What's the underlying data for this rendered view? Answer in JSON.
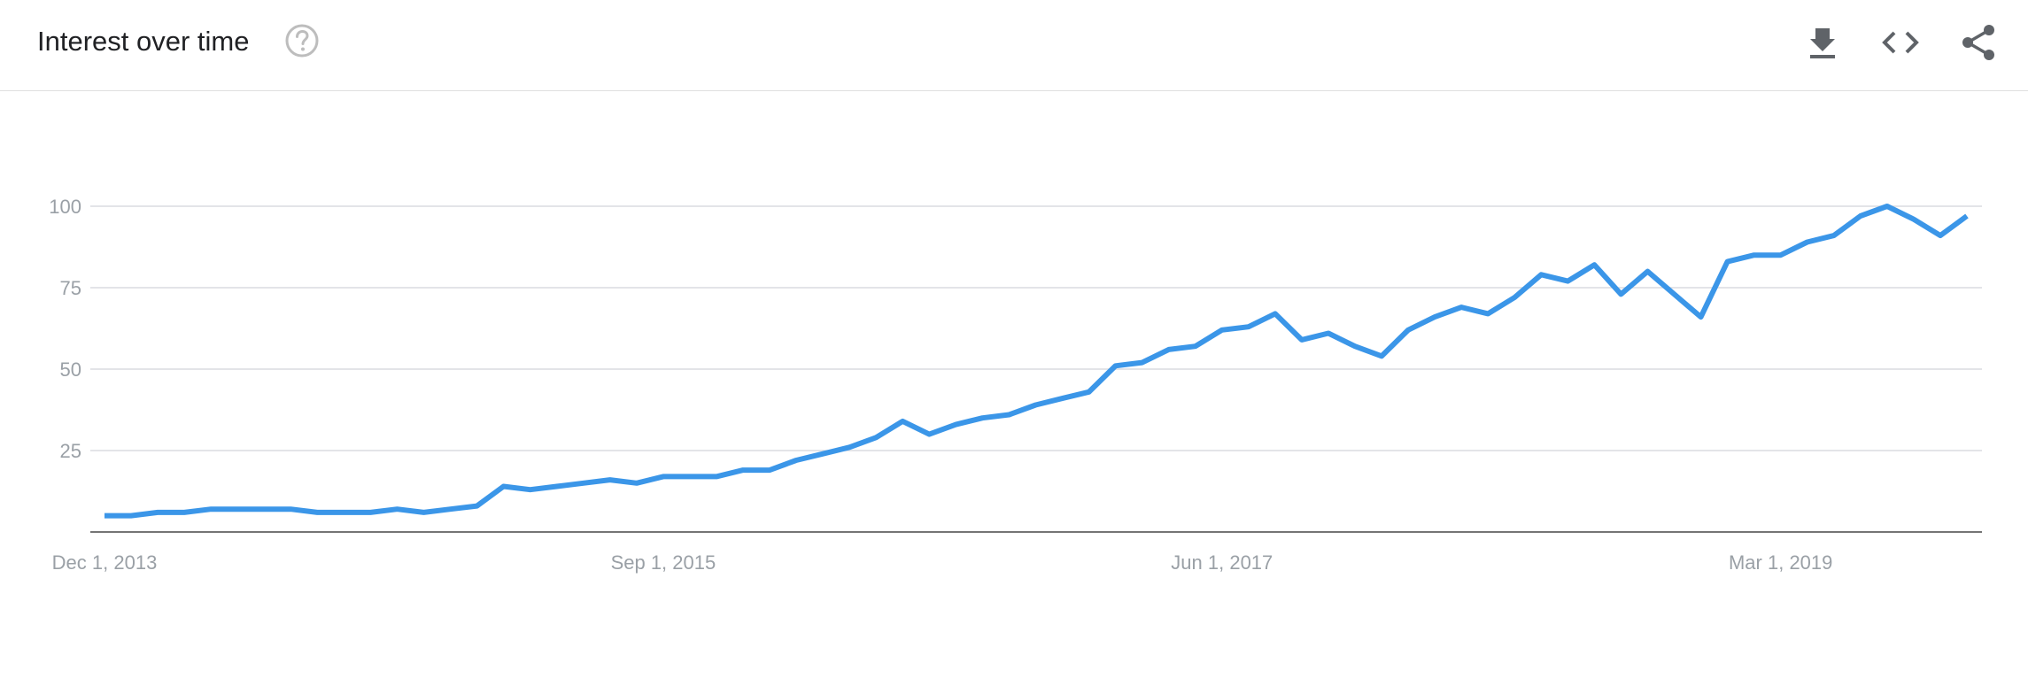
{
  "header": {
    "title": "Interest over time",
    "help_icon": "help-circle-icon",
    "actions": [
      {
        "name": "download",
        "icon": "download-icon"
      },
      {
        "name": "embed",
        "icon": "code-icon"
      },
      {
        "name": "share",
        "icon": "share-icon"
      }
    ]
  },
  "colors": {
    "line": "#3b96e8",
    "grid": "#dadce0",
    "axis": "#757575",
    "tick_text": "#9aa0a6",
    "icon": "#5f6368",
    "help": "#bdbdbd"
  },
  "chart_data": {
    "type": "line",
    "title": "",
    "xlabel": "",
    "ylabel": "",
    "ylim": [
      0,
      100
    ],
    "yticks": [
      25,
      50,
      75,
      100
    ],
    "grid": true,
    "x_tick_labels": [
      "Dec 1, 2013",
      "Sep 1, 2015",
      "Jun 1, 2017",
      "Mar 1, 2019"
    ],
    "x_start": "Dec 1, 2013",
    "x_end": "Oct 1, 2019",
    "frequency": "monthly",
    "series": [
      {
        "values": [
          5,
          5,
          6,
          6,
          7,
          7,
          7,
          7,
          6,
          6,
          6,
          7,
          6,
          7,
          8,
          14,
          13,
          14,
          15,
          16,
          15,
          17,
          17,
          17,
          19,
          19,
          22,
          24,
          26,
          29,
          34,
          30,
          33,
          35,
          36,
          39,
          41,
          43,
          51,
          52,
          56,
          57,
          62,
          63,
          67,
          59,
          61,
          57,
          54,
          62,
          66,
          69,
          67,
          72,
          79,
          77,
          82,
          73,
          80,
          73,
          66,
          83,
          85,
          85,
          89,
          91,
          97,
          100,
          96,
          91,
          97
        ]
      }
    ]
  }
}
